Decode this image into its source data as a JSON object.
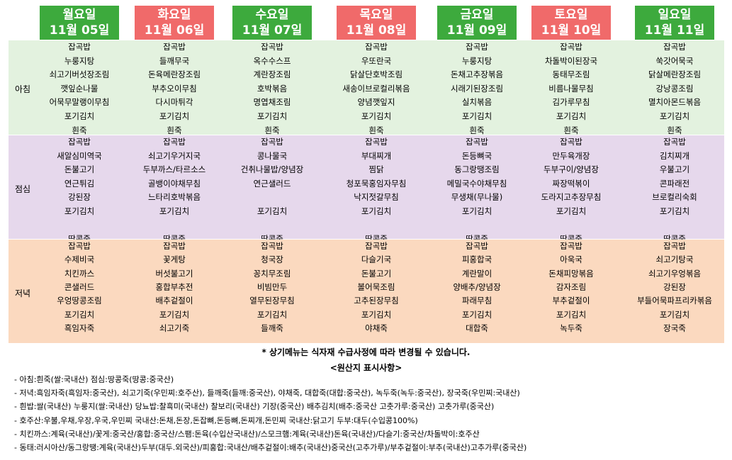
{
  "days": [
    {
      "name": "월요일",
      "date": "11월 05일",
      "color": "green"
    },
    {
      "name": "화요일",
      "date": "11월 06일",
      "color": "red"
    },
    {
      "name": "수요일",
      "date": "11월 07일",
      "color": "green"
    },
    {
      "name": "목요일",
      "date": "11월 08일",
      "color": "red"
    },
    {
      "name": "금요일",
      "date": "11월 09일",
      "color": "green"
    },
    {
      "name": "토요일",
      "date": "11월 10일",
      "color": "red"
    },
    {
      "name": "일요일",
      "date": "11월 11일",
      "color": "green"
    }
  ],
  "meals": {
    "breakfast": {
      "label": "아침",
      "columns": [
        [
          "잡곡밥",
          "누룽지탕",
          "쇠고기버섯장조림",
          "깻잎순나물",
          "어묵무말랭이무침",
          "포기김치",
          "흰죽"
        ],
        [
          "잡곡밥",
          "들깨무국",
          "돈육메란장조림",
          "부추오이무침",
          "다시마튀각",
          "포기김치",
          "흰죽"
        ],
        [
          "잡곡밥",
          "옥수수스프",
          "계란장조림",
          "호박볶음",
          "명엽채조림",
          "포기김치",
          "흰죽"
        ],
        [
          "잡곡밥",
          "우또란국",
          "닭살단호박조림",
          "새송이브로컬리볶음",
          "양념깻잎지",
          "포기김치",
          "흰죽"
        ],
        [
          "잡곡밥",
          "누룽지탕",
          "돈채고추장볶음",
          "시래기된장조림",
          "실치볶음",
          "포기김치",
          "흰죽"
        ],
        [
          "잡곡밥",
          "차돌박이된장국",
          "동태무조림",
          "비름나물무침",
          "김가루무침",
          "포기김치",
          "흰죽"
        ],
        [
          "잡곡밥",
          "쑥갓어묵국",
          "닭살메란장조림",
          "강낭콩조림",
          "멸치아몬드볶음",
          "포기김치",
          "흰죽"
        ]
      ]
    },
    "lunch": {
      "label": "점심",
      "columns": [
        [
          "잡곡밥",
          "새알심미역국",
          "돈불고기",
          "연근튀김",
          "강된장",
          "포기김치",
          "",
          "땅콩죽"
        ],
        [
          "잡곡밥",
          "쇠고기우거지국",
          "두부까스/타르소스",
          "골뱅이야채무침",
          "느타리호박볶음",
          "포기김치",
          "",
          "땅콩죽"
        ],
        [
          "잡곡밥",
          "콩나물국",
          "건취나물밥/양념장",
          "연근샐러드",
          "",
          "포기김치",
          "",
          "땅콩죽"
        ],
        [
          "잡곡밥",
          "부대찌개",
          "찜닭",
          "청포묵홍임자무침",
          "낙지젓갈무침",
          "포기김치",
          "",
          "땅콩죽"
        ],
        [
          "잡곡밥",
          "돈등뼈국",
          "동그랑땡조림",
          "메밀국수야채무침",
          "무생채(무나물)",
          "포기김치",
          "",
          "땅콩죽"
        ],
        [
          "잡곡밥",
          "만두육개장",
          "두부구이/양념장",
          "짜장떡볶이",
          "도라지고추장무침",
          "포기김치",
          "",
          "땅콩죽"
        ],
        [
          "잡곡밥",
          "김치찌개",
          "우불고기",
          "콘파래전",
          "브로컬리숙회",
          "포기김치",
          "",
          "땅콩죽"
        ]
      ]
    },
    "dinner": {
      "label": "저녁",
      "columns": [
        [
          "잡곡밥",
          "수제비국",
          "치킨까스",
          "콘샐러드",
          "우엉땅콩조림",
          "포기김치",
          "흑임자죽"
        ],
        [
          "잡곡밥",
          "꽃게탕",
          "버섯불고기",
          "홍합부추전",
          "배추겉절이",
          "포기김치",
          "쇠고기죽"
        ],
        [
          "잡곡밥",
          "청국장",
          "꽁치무조림",
          "비빔만두",
          "열무된장무침",
          "포기김치",
          "들깨죽"
        ],
        [
          "잡곡밥",
          "다슬기국",
          "돈불고기",
          "볼어묵조림",
          "고추된장무침",
          "포기김치",
          "야채죽"
        ],
        [
          "잡곡밥",
          "피홍합국",
          "계란말이",
          "양배추/양념장",
          "파래무침",
          "포기김치",
          "대합죽"
        ],
        [
          "잡곡밥",
          "아욱국",
          "돈채피망볶음",
          "감자조림",
          "부추겉절이",
          "포기김치",
          "녹두죽"
        ],
        [
          "잡곡밥",
          "쇠고기탕국",
          "쇠고기우엉볶음",
          "강된장",
          "부들어묵파프리카볶음",
          "포기김치",
          "장국죽"
        ]
      ]
    }
  },
  "notice": "* 상기메뉴는 식자재 수급사정에 따라 변경될 수 있습니다.",
  "origin": {
    "title": "<원산지 표시사항>",
    "lines": [
      "- 아침:흰죽(쌀:국내산) 점심:땅콩죽(땅콩:중국산)",
      "- 저녁:흑임자죽(흑임자:중국산), 쇠고기죽(우민찌:호주산), 들깨죽(들깨:중국산), 야채죽, 대합죽(대합:중국산), 녹두죽(녹두:중국산), 장국죽(우민찌:국내산)",
      "- 흰밥:쌀(국내산) 누룽지(쌀:국내산) 당뇨밥:찰흑미(국내산) 찰보리(국내산) 기장(중국산) 배추김치(배추:중국산 고춧가루:중국산) 고춧가루(중국산)",
      "- 호주산:우불,우채,우장,우국,우민찌 국내산:돈채,돈장,돈잡뼈,돈등뼈,돈찌개,돈민찌 국내산:닭고기 두부:대두(수입콩100%)",
      "- 치킨까스:계육(국내산)/꽃게:중국산/홍합:중국산/스팸:돈육(수입산국내산)/스모크햄:계육(국내산)돈육(국내산)/다슬기:중국산/차돌박이:호주산",
      "- 동태:러시아산/동그랑땡:계육(국내산)두부(대두.외국산)/피홍합:국내산/배추겉절이:배추(국내산)중국산(고추가루)/부추겉절이:부추(국내산)고추가루(중국산)"
    ]
  }
}
